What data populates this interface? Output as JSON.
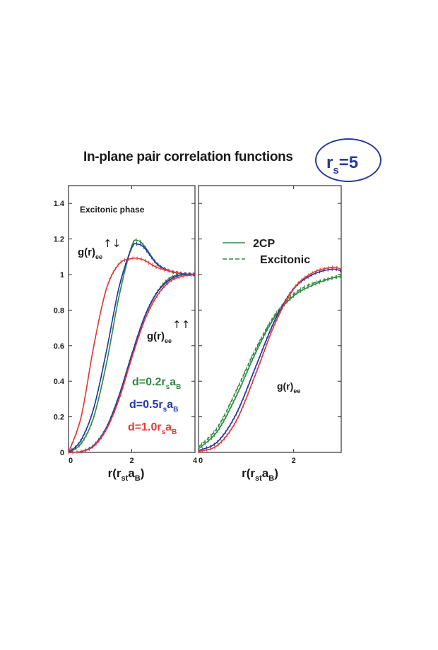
{
  "title": "In-plane pair correlation functions",
  "rs_badge": {
    "symbol": "r",
    "sub": "s",
    "eq": "=5"
  },
  "chart_data": [
    {
      "type": "line",
      "panel": "left",
      "annotation": "Excitonic phase",
      "xlim": [
        0,
        4
      ],
      "ylim": [
        0,
        1.5
      ],
      "xticks": [
        0,
        2,
        4
      ],
      "yticks": [
        0,
        0.2,
        0.4,
        0.6,
        0.8,
        1,
        1.2,
        1.4
      ],
      "xlabel": {
        "main": "r(r",
        "sub": "st",
        "mid": "a",
        "sub2": "B",
        "end": ")"
      },
      "curve_labels": [
        {
          "text": "g(r)",
          "sub": "ee",
          "spin": "↑↓"
        },
        {
          "text": "g(r)",
          "sub": "ee",
          "spin": "↑↑"
        }
      ],
      "legend": [
        {
          "text": "d=0.2r",
          "s": "s",
          "a": "a",
          "B": "B",
          "color": "#2e8b3e"
        },
        {
          "text": "d=0.5r",
          "s": "s",
          "a": "a",
          "B": "B",
          "color": "#2338a8"
        },
        {
          "text": "d=1.0r",
          "s": "s",
          "a": "a",
          "B": "B",
          "color": "#e23a3a"
        }
      ],
      "series": [
        {
          "name": "d=0.2r_s a_B ↑↓",
          "color": "#2e8b3e",
          "x": [
            0,
            0.4,
            0.8,
            1.2,
            1.6,
            2.0,
            2.2,
            2.4,
            2.8,
            3.2,
            3.6,
            4.0
          ],
          "y": [
            0,
            0.05,
            0.2,
            0.5,
            0.88,
            1.16,
            1.19,
            1.16,
            1.06,
            1.02,
            1.005,
            1.0
          ]
        },
        {
          "name": "d=0.5r_s a_B ↑↓",
          "color": "#2338a8",
          "x": [
            0,
            0.4,
            0.8,
            1.2,
            1.6,
            2.0,
            2.2,
            2.4,
            2.8,
            3.2,
            3.6,
            4.0
          ],
          "y": [
            0,
            0.07,
            0.25,
            0.57,
            0.93,
            1.15,
            1.17,
            1.15,
            1.06,
            1.02,
            1.005,
            1.0
          ]
        },
        {
          "name": "d=1.0r_s a_B ↑↓",
          "color": "#e23a3a",
          "x": [
            0,
            0.4,
            0.8,
            1.2,
            1.6,
            2.0,
            2.2,
            2.4,
            2.8,
            3.2,
            3.6,
            4.0
          ],
          "y": [
            0,
            0.2,
            0.6,
            0.92,
            1.06,
            1.09,
            1.09,
            1.08,
            1.04,
            1.02,
            1.005,
            1.0
          ]
        },
        {
          "name": "d=0.2r_s a_B ↑↑",
          "color": "#2e8b3e",
          "x": [
            0,
            0.4,
            0.8,
            1.2,
            1.6,
            2.0,
            2.4,
            2.8,
            3.2,
            3.6,
            4.0
          ],
          "y": [
            0,
            0.005,
            0.04,
            0.14,
            0.32,
            0.55,
            0.76,
            0.9,
            0.98,
            1.0,
            1.0
          ]
        },
        {
          "name": "d=0.5r_s a_B ↑↑",
          "color": "#2338a8",
          "x": [
            0,
            0.4,
            0.8,
            1.2,
            1.6,
            2.0,
            2.4,
            2.8,
            3.2,
            3.6,
            4.0
          ],
          "y": [
            0,
            0.005,
            0.04,
            0.14,
            0.32,
            0.55,
            0.76,
            0.9,
            0.97,
            1.0,
            1.0
          ]
        },
        {
          "name": "d=1.0r_s a_B ↑↑",
          "color": "#e23a3a",
          "x": [
            0,
            0.4,
            0.8,
            1.2,
            1.6,
            2.0,
            2.4,
            2.8,
            3.2,
            3.6,
            4.0
          ],
          "y": [
            0,
            0.005,
            0.035,
            0.13,
            0.3,
            0.53,
            0.74,
            0.88,
            0.96,
            0.99,
            1.0
          ]
        }
      ]
    },
    {
      "type": "line",
      "panel": "right",
      "xlim": [
        0,
        3
      ],
      "ylim": [
        0,
        1.5
      ],
      "xticks": [
        0,
        2
      ],
      "xlabel": {
        "main": "r(r",
        "sub": "st",
        "mid": "a",
        "sub2": "B",
        "end": ")"
      },
      "curve_label": {
        "text": "g(r)",
        "sub": "ee"
      },
      "legend": [
        {
          "label": "2CP",
          "style": "solid"
        },
        {
          "label": "Excitonic",
          "style": "dashed"
        }
      ],
      "series": [
        {
          "name": "2CP green",
          "color": "#2e8b3e",
          "dash": false,
          "x": [
            0,
            0.4,
            0.8,
            1.2,
            1.6,
            2.0,
            2.4,
            2.8,
            3.0
          ],
          "y": [
            0.02,
            0.12,
            0.32,
            0.56,
            0.76,
            0.88,
            0.94,
            0.98,
            0.99
          ]
        },
        {
          "name": "Excitonic green",
          "color": "#2e8b3e",
          "dash": true,
          "x": [
            0,
            0.4,
            0.8,
            1.2,
            1.6,
            2.0,
            2.4,
            2.8,
            3.0
          ],
          "y": [
            0.03,
            0.14,
            0.35,
            0.58,
            0.77,
            0.89,
            0.95,
            0.98,
            0.99
          ]
        },
        {
          "name": "2CP blue",
          "color": "#2338a8",
          "dash": false,
          "x": [
            0,
            0.4,
            0.8,
            1.2,
            1.6,
            2.0,
            2.4,
            2.8,
            3.0
          ],
          "y": [
            0.01,
            0.06,
            0.22,
            0.48,
            0.74,
            0.92,
            1.0,
            1.03,
            1.02
          ]
        },
        {
          "name": "2CP red",
          "color": "#e23a3a",
          "dash": false,
          "x": [
            0,
            0.4,
            0.8,
            1.2,
            1.6,
            2.0,
            2.4,
            2.8,
            3.0
          ],
          "y": [
            0.005,
            0.04,
            0.18,
            0.44,
            0.72,
            0.92,
            1.01,
            1.04,
            1.03
          ]
        }
      ]
    }
  ]
}
